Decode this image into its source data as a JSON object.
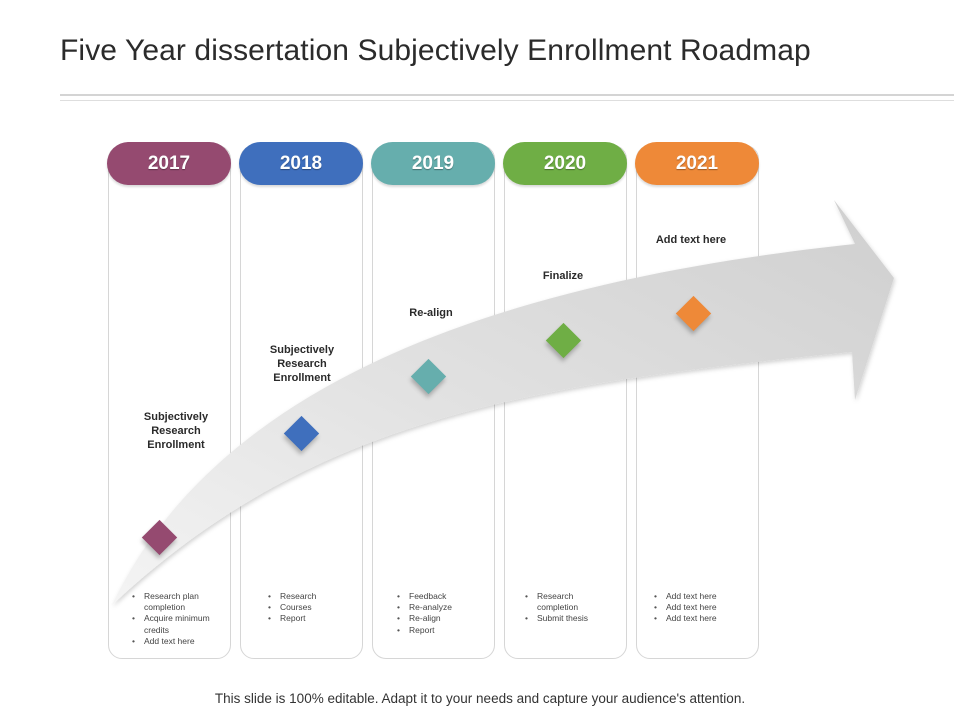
{
  "slide": {
    "title": "Five Year dissertation Subjectively Enrollment Roadmap",
    "footer": "This slide is 100% editable. Adapt it to your needs and capture your audience's attention."
  },
  "roadmap": {
    "columns": [
      {
        "year": "2017",
        "color": "#954A70",
        "label": "Subjectively Research Enrollment",
        "bullets": [
          "Research plan completion",
          "Acquire minimum credits",
          "Add text here"
        ]
      },
      {
        "year": "2018",
        "color": "#3F6FBD",
        "label": "Subjectively Research Enrollment",
        "bullets": [
          "Research",
          "Courses",
          "Report"
        ]
      },
      {
        "year": "2019",
        "color": "#66AEAD",
        "label": "Re-align",
        "bullets": [
          "Feedback",
          "Re-analyze",
          "Re-align",
          "Report"
        ]
      },
      {
        "year": "2020",
        "color": "#6FAE45",
        "label": "Finalize",
        "bullets": [
          "Research completion",
          "Submit thesis"
        ]
      },
      {
        "year": "2021",
        "color": "#EE8938",
        "label": "Add  text here",
        "bullets": [
          "Add text here",
          "Add text here",
          "Add text here"
        ]
      }
    ]
  }
}
